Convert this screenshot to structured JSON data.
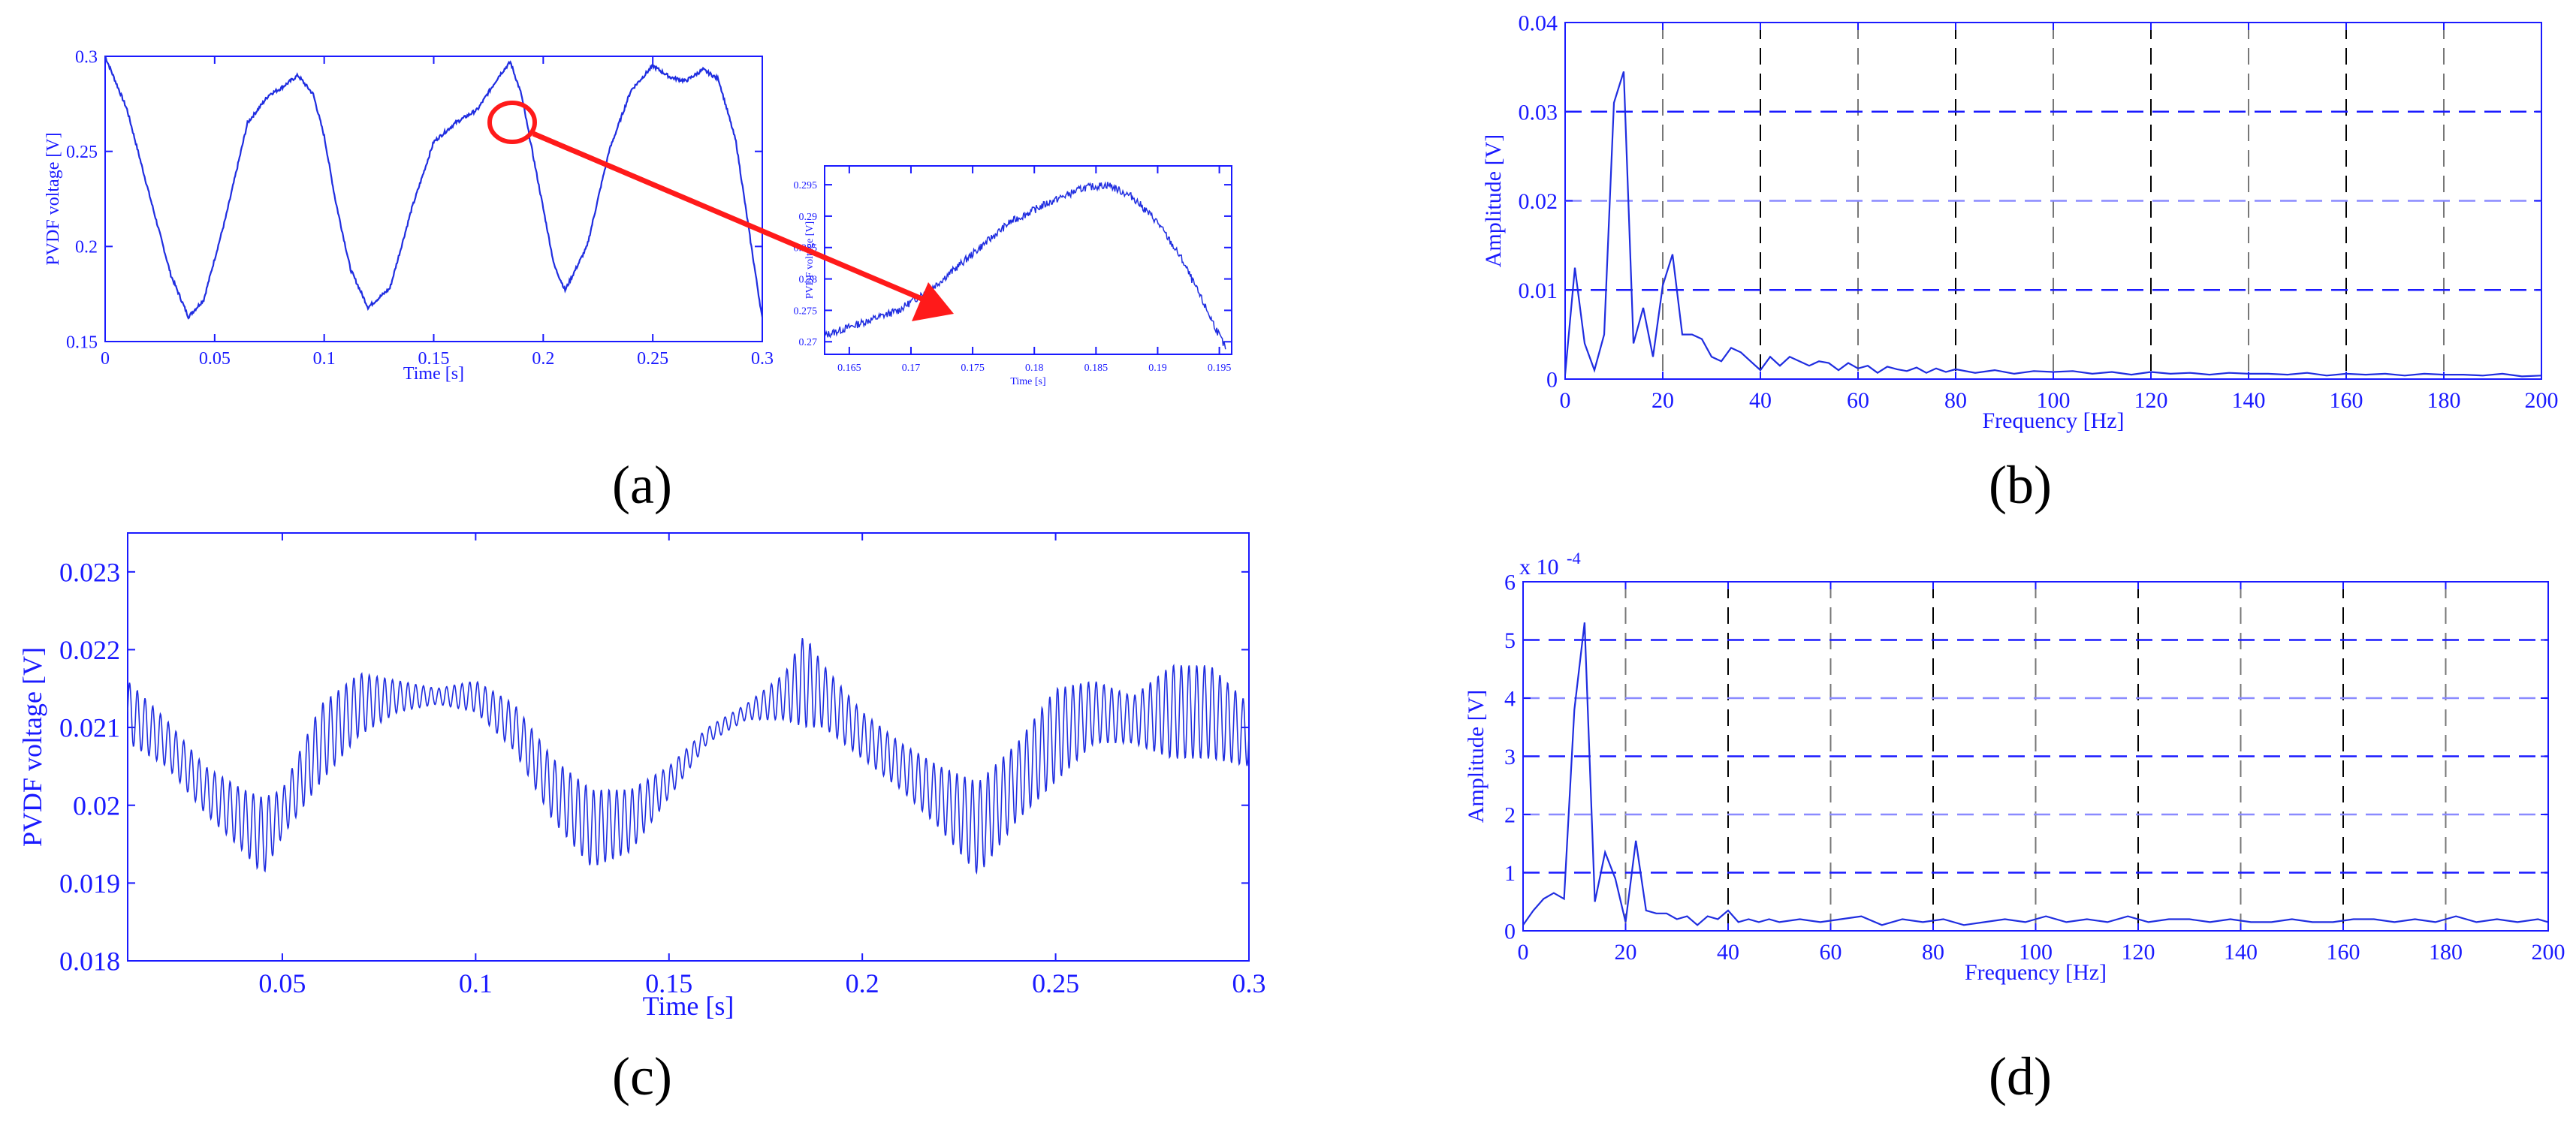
{
  "colors": {
    "trace": "#1f2de0",
    "axis": "#1a1aff",
    "dash_blue": "#1a1aff",
    "dash_black": "#000000",
    "arrow": "#ff1a1a"
  },
  "panel_labels": [
    "(a)",
    "(b)",
    "(c)",
    "(d)"
  ],
  "chart_data": [
    {
      "id": "a",
      "type": "line",
      "xlabel": "Time [s]",
      "ylabel": "PVDF voltage [V]",
      "xlim": [
        0,
        0.3
      ],
      "ylim": [
        0.15,
        0.3
      ],
      "xticks": [
        0,
        0.05,
        0.1,
        0.15,
        0.2,
        0.25,
        0.3
      ],
      "xtick_labels": [
        "0",
        "0.05",
        "0.1",
        "0.15",
        "0.2",
        "0.25",
        "0.3"
      ],
      "yticks": [
        0.15,
        0.2,
        0.25,
        0.3
      ],
      "ytick_labels": [
        "0.15",
        "0.2",
        "0.25",
        "0.3"
      ],
      "grid": false,
      "series": [
        {
          "x": [
            0,
            0.01,
            0.02,
            0.03,
            0.038,
            0.045,
            0.055,
            0.065,
            0.075,
            0.08,
            0.088,
            0.095,
            0.1,
            0.105,
            0.112,
            0.12,
            0.13,
            0.14,
            0.15,
            0.16,
            0.17,
            0.18,
            0.185,
            0.19,
            0.198,
            0.205,
            0.21,
            0.22,
            0.23,
            0.24,
            0.25,
            0.258,
            0.265,
            0.273,
            0.28,
            0.288,
            0.295,
            0.3
          ],
          "y": [
            0.3,
            0.272,
            0.228,
            0.185,
            0.163,
            0.172,
            0.215,
            0.265,
            0.28,
            0.283,
            0.29,
            0.28,
            0.258,
            0.225,
            0.188,
            0.168,
            0.178,
            0.22,
            0.255,
            0.265,
            0.272,
            0.29,
            0.297,
            0.28,
            0.232,
            0.19,
            0.177,
            0.2,
            0.25,
            0.282,
            0.295,
            0.289,
            0.287,
            0.293,
            0.288,
            0.255,
            0.2,
            0.162
          ]
        }
      ],
      "annotation": "circle at t≈0.18 s with arrow pointing to zoomed inset"
    },
    {
      "id": "a-inset",
      "type": "line",
      "xlabel": "Time [s]",
      "ylabel": "PVDF voltage [V]",
      "xlim": [
        0.163,
        0.196
      ],
      "ylim": [
        0.268,
        0.298
      ],
      "xticks": [
        0.165,
        0.17,
        0.175,
        0.18,
        0.185,
        0.19,
        0.195
      ],
      "xtick_labels": [
        "0.165",
        "0.17",
        "0.175",
        "0.18",
        "0.185",
        "0.19",
        "0.195"
      ],
      "yticks": [
        0.27,
        0.275,
        0.28,
        0.285,
        0.29,
        0.295
      ],
      "ytick_labels": [
        "0.27",
        "0.275",
        "0.28",
        "0.285",
        "0.29",
        "0.295"
      ],
      "grid": false,
      "series": [
        {
          "x": [
            0.163,
            0.166,
            0.169,
            0.172,
            0.175,
            0.178,
            0.181,
            0.184,
            0.186,
            0.188,
            0.19,
            0.192,
            0.194,
            0.1955
          ],
          "y": [
            0.271,
            0.273,
            0.275,
            0.279,
            0.284,
            0.289,
            0.292,
            0.2945,
            0.295,
            0.293,
            0.289,
            0.283,
            0.275,
            0.269
          ]
        }
      ]
    },
    {
      "id": "b",
      "type": "line",
      "xlabel": "Frequency [Hz]",
      "ylabel": "Amplitude [V]",
      "xlim": [
        0,
        200
      ],
      "ylim": [
        0,
        0.04
      ],
      "xticks": [
        0,
        20,
        40,
        60,
        80,
        100,
        120,
        140,
        160,
        180,
        200
      ],
      "xtick_labels": [
        "0",
        "20",
        "40",
        "60",
        "80",
        "100",
        "120",
        "140",
        "160",
        "180",
        "200"
      ],
      "yticks": [
        0,
        0.01,
        0.02,
        0.03,
        0.04
      ],
      "ytick_labels": [
        "0",
        "0.01",
        "0.02",
        "0.03",
        "0.04"
      ],
      "grid": true,
      "series": [
        {
          "x": [
            0,
            2,
            4,
            6,
            8,
            10,
            12,
            14,
            16,
            18,
            20,
            22,
            24,
            26,
            28,
            30,
            32,
            34,
            36,
            38,
            40,
            42,
            44,
            46,
            48,
            50,
            52,
            54,
            56,
            58,
            60,
            62,
            64,
            66,
            68,
            70,
            72,
            74,
            76,
            78,
            80,
            84,
            88,
            92,
            96,
            100,
            104,
            108,
            112,
            116,
            120,
            124,
            128,
            132,
            136,
            140,
            144,
            148,
            152,
            156,
            160,
            164,
            168,
            172,
            176,
            180,
            184,
            188,
            192,
            196,
            200
          ],
          "y": [
            0.0005,
            0.0125,
            0.004,
            0.001,
            0.005,
            0.031,
            0.0345,
            0.004,
            0.008,
            0.0025,
            0.0105,
            0.014,
            0.005,
            0.005,
            0.0045,
            0.0025,
            0.002,
            0.0035,
            0.003,
            0.002,
            0.001,
            0.0025,
            0.0015,
            0.0025,
            0.002,
            0.0015,
            0.002,
            0.0018,
            0.001,
            0.0018,
            0.0012,
            0.0015,
            0.0007,
            0.0014,
            0.0011,
            0.0009,
            0.0013,
            0.0007,
            0.0012,
            0.0008,
            0.0011,
            0.0007,
            0.001,
            0.0006,
            0.0009,
            0.0008,
            0.0009,
            0.0006,
            0.0008,
            0.0005,
            0.0008,
            0.0006,
            0.0007,
            0.0005,
            0.0007,
            0.0006,
            0.0006,
            0.0005,
            0.0007,
            0.0004,
            0.0006,
            0.0005,
            0.0006,
            0.0004,
            0.0006,
            0.0005,
            0.0005,
            0.0004,
            0.0006,
            0.0003,
            0.0004
          ]
        }
      ]
    },
    {
      "id": "c",
      "type": "line",
      "xlabel": "Time [s]",
      "ylabel": "PVDF voltage [V]",
      "xlim": [
        0.01,
        0.3
      ],
      "ylim": [
        0.018,
        0.0235
      ],
      "xticks": [
        0.05,
        0.1,
        0.15,
        0.2,
        0.25,
        0.3
      ],
      "xtick_labels": [
        "0.05",
        "0.1",
        "0.15",
        "0.2",
        "0.25",
        "0.3"
      ],
      "yticks": [
        0.018,
        0.019,
        0.02,
        0.021,
        0.022,
        0.023
      ],
      "ytick_labels": [
        "0.018",
        "0.019",
        "0.02",
        "0.021",
        "0.022",
        "0.023"
      ],
      "grid": false,
      "series": [
        {
          "envelope_x": [
            0.01,
            0.02,
            0.03,
            0.04,
            0.045,
            0.05,
            0.06,
            0.07,
            0.08,
            0.09,
            0.1,
            0.11,
            0.12,
            0.13,
            0.14,
            0.15,
            0.16,
            0.17,
            0.18,
            0.185,
            0.19,
            0.2,
            0.21,
            0.22,
            0.23,
            0.24,
            0.25,
            0.26,
            0.27,
            0.28,
            0.29,
            0.3
          ],
          "envelope_center": [
            0.0212,
            0.0208,
            0.0202,
            0.0198,
            0.0196,
            0.0199,
            0.0208,
            0.0213,
            0.0214,
            0.0214,
            0.0214,
            0.021,
            0.0202,
            0.0197,
            0.0198,
            0.0203,
            0.0209,
            0.0212,
            0.0214,
            0.0216,
            0.0214,
            0.0209,
            0.0205,
            0.0201,
            0.0197,
            0.0203,
            0.0209,
            0.0212,
            0.0211,
            0.0212,
            0.0212,
            0.0209
          ],
          "envelope_halfwidth": [
            0.0004,
            0.0003,
            0.0003,
            0.0004,
            0.0005,
            0.0003,
            0.0005,
            0.0004,
            0.0002,
            0.0001,
            0.0002,
            0.0003,
            0.0004,
            0.0005,
            0.0004,
            0.0002,
            0.0001,
            0.0001,
            0.0003,
            0.0006,
            0.0004,
            0.0003,
            0.0003,
            0.0004,
            0.0006,
            0.0005,
            0.0006,
            0.0004,
            0.0003,
            0.0006,
            0.0006,
            0.0004
          ],
          "oscillation_period_s": 0.002
        }
      ]
    },
    {
      "id": "d",
      "type": "line",
      "xlabel": "Frequency [Hz]",
      "ylabel": "Amplitude [V]",
      "exponent_label": "x 10",
      "exponent_power": "-4",
      "xlim": [
        0,
        200
      ],
      "ylim": [
        0,
        6
      ],
      "xticks": [
        0,
        20,
        40,
        60,
        80,
        100,
        120,
        140,
        160,
        180,
        200
      ],
      "xtick_labels": [
        "0",
        "20",
        "40",
        "60",
        "80",
        "100",
        "120",
        "140",
        "160",
        "180",
        "200"
      ],
      "yticks": [
        0,
        1,
        2,
        3,
        4,
        5,
        6
      ],
      "ytick_labels": [
        "0",
        "1",
        "2",
        "3",
        "4",
        "5",
        "6"
      ],
      "grid": true,
      "series": [
        {
          "x": [
            0,
            2,
            4,
            6,
            8,
            10,
            12,
            14,
            16,
            18,
            20,
            22,
            24,
            26,
            28,
            30,
            32,
            34,
            36,
            38,
            40,
            42,
            44,
            46,
            48,
            50,
            54,
            58,
            62,
            66,
            70,
            74,
            78,
            82,
            86,
            90,
            94,
            98,
            102,
            106,
            110,
            114,
            118,
            122,
            126,
            130,
            134,
            138,
            142,
            146,
            150,
            154,
            158,
            162,
            166,
            170,
            174,
            178,
            182,
            186,
            190,
            194,
            198,
            200
          ],
          "y": [
            0.1,
            0.35,
            0.55,
            0.65,
            0.55,
            3.8,
            5.3,
            0.5,
            1.35,
            0.9,
            0.15,
            1.55,
            0.35,
            0.3,
            0.3,
            0.2,
            0.25,
            0.1,
            0.25,
            0.2,
            0.35,
            0.15,
            0.2,
            0.15,
            0.2,
            0.15,
            0.2,
            0.15,
            0.2,
            0.25,
            0.1,
            0.2,
            0.15,
            0.2,
            0.1,
            0.15,
            0.2,
            0.15,
            0.25,
            0.15,
            0.2,
            0.15,
            0.25,
            0.15,
            0.2,
            0.2,
            0.15,
            0.2,
            0.15,
            0.15,
            0.2,
            0.15,
            0.15,
            0.2,
            0.2,
            0.15,
            0.2,
            0.15,
            0.25,
            0.15,
            0.2,
            0.15,
            0.2,
            0.15
          ]
        }
      ]
    }
  ]
}
